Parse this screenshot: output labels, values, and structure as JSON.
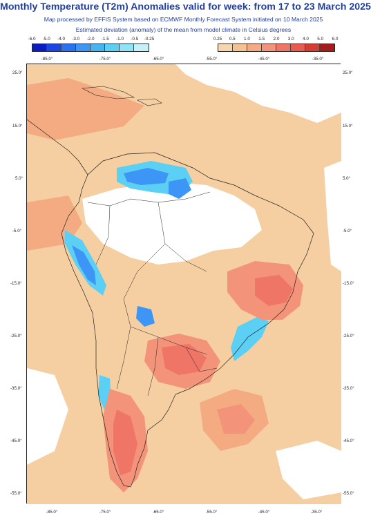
{
  "header": {
    "title": "Monthly Temperature (T2m) Anomalies valid for week: from 17 to 23 March 2025",
    "subtitle1": "Map processed by EFFIS System based on ECMWF Monthly Forecast System initiated on 10 March 2025",
    "subtitle2": "Estimated deviation (anomaly) of the mean from model climate in Celsius degrees"
  },
  "legend": {
    "cold": {
      "ticks": [
        "-6.0",
        "-5.0",
        "-4.0",
        "-3.0",
        "-2.0",
        "-1.5",
        "-1.0",
        "-0.5",
        "-0.25"
      ],
      "colors": [
        "#0a1cc8",
        "#1b46e6",
        "#2a72f2",
        "#3d95f6",
        "#47b4f2",
        "#5cd0f4",
        "#8fe3f6",
        "#c6f1f8"
      ]
    },
    "warm": {
      "ticks": [
        "0.25",
        "0.5",
        "1.0",
        "1.5",
        "2.0",
        "3.0",
        "4.0",
        "5.0",
        "6.0"
      ],
      "colors": [
        "#f7d6ad",
        "#f5c393",
        "#f4ab82",
        "#f3937a",
        "#ef7566",
        "#e95a4f",
        "#d63b34",
        "#ab1a1a"
      ]
    },
    "top_lon_labels": [
      "-85.0°",
      "-75.0°",
      "-65.0°",
      "-55.0°",
      "-45.0°",
      "-35.0°"
    ]
  },
  "map": {
    "lat_labels": [
      "25.0°",
      "15.0°",
      "5.0°",
      "-5.0°",
      "-15.0°",
      "-25.0°",
      "-35.0°",
      "-45.0°",
      "-55.0°"
    ],
    "lon_labels": [
      "-85.0°",
      "-75.0°",
      "-65.0°",
      "-55.0°",
      "-45.0°",
      "-35.0°"
    ],
    "colors": {
      "background": "#f5cfa2",
      "neutral": "#ffffff",
      "warm_1": "#f4ab82",
      "warm_2": "#f3937a",
      "warm_3": "#ef7566",
      "warm_4": "#e95a4f",
      "cold_1": "#5cd0f4",
      "cold_2": "#3d95f6",
      "border": "#222222"
    }
  }
}
